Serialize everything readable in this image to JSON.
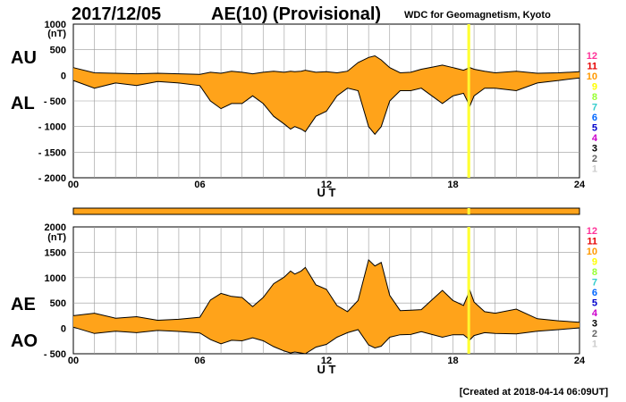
{
  "header": {
    "date": "2017/12/05",
    "title": "AE(10) (Provisional)",
    "source": "WDC for Geomagnetism, Kyoto"
  },
  "footer": {
    "created": "[Created at 2018-04-14 06:09UT]"
  },
  "colors": {
    "fill": "#ffa31a",
    "highlight": "#ffff33",
    "grid": "#9a9a9a",
    "line": "#000000"
  },
  "station_count_scale": [
    {
      "label": "12",
      "color": "#ff3399"
    },
    {
      "label": "11",
      "color": "#e60000"
    },
    {
      "label": "10",
      "color": "#ff9900"
    },
    {
      "label": "9",
      "color": "#ffff00"
    },
    {
      "label": "8",
      "color": "#99ff33"
    },
    {
      "label": "7",
      "color": "#33cccc"
    },
    {
      "label": "6",
      "color": "#0066ff"
    },
    {
      "label": "5",
      "color": "#0000cc"
    },
    {
      "label": "4",
      "color": "#cc00cc"
    },
    {
      "label": "3",
      "color": "#000000"
    },
    {
      "label": "2",
      "color": "#666666"
    },
    {
      "label": "1",
      "color": "#cccccc"
    }
  ],
  "chart_data": [
    {
      "type": "area",
      "name": "AU/AL",
      "series_labels": [
        "AU",
        "AL"
      ],
      "unit": "(nT)",
      "xlabel": "U T",
      "xlim": [
        0,
        24
      ],
      "xticks": [
        "00",
        "06",
        "12",
        "18",
        "24"
      ],
      "ylim": [
        -2000,
        1000
      ],
      "yticks": [
        "1000",
        "500",
        "0",
        "- 500",
        "- 1000",
        "- 1500",
        "- 2000"
      ],
      "grid": true,
      "highlight_x_hours": 18.75,
      "x": [
        0,
        1,
        2,
        3,
        4,
        5,
        6,
        6.5,
        7,
        7.5,
        8,
        8.5,
        9,
        9.5,
        10,
        10.3,
        10.5,
        10.8,
        11,
        11.5,
        12,
        12.5,
        13,
        13.5,
        14,
        14.3,
        14.6,
        15,
        15.5,
        16,
        16.5,
        17,
        17.5,
        18,
        18.5,
        18.8,
        19,
        19.5,
        20,
        21,
        22,
        23,
        24
      ],
      "AU": [
        150,
        50,
        40,
        30,
        40,
        30,
        20,
        60,
        40,
        80,
        60,
        30,
        60,
        80,
        60,
        80,
        70,
        80,
        100,
        60,
        70,
        50,
        80,
        250,
        350,
        380,
        300,
        150,
        50,
        60,
        120,
        160,
        200,
        150,
        100,
        150,
        120,
        80,
        50,
        80,
        40,
        50,
        70
      ],
      "AL": [
        -100,
        -250,
        -150,
        -200,
        -120,
        -150,
        -200,
        -500,
        -650,
        -550,
        -550,
        -400,
        -550,
        -800,
        -950,
        -1050,
        -1000,
        -1050,
        -1100,
        -800,
        -700,
        -400,
        -250,
        -300,
        -1000,
        -1150,
        -1000,
        -500,
        -300,
        -300,
        -250,
        -400,
        -550,
        -400,
        -350,
        -600,
        -400,
        -250,
        -250,
        -300,
        -150,
        -100,
        -50
      ]
    },
    {
      "type": "area",
      "name": "AE/AO",
      "series_labels": [
        "AE",
        "AO"
      ],
      "unit": "(nT)",
      "xlabel": "U T",
      "xlim": [
        0,
        24
      ],
      "xticks": [
        "00",
        "06",
        "12",
        "18",
        "24"
      ],
      "ylim": [
        -500,
        2000
      ],
      "yticks": [
        "2000",
        "1500",
        "1000",
        "500",
        "0",
        "- 500"
      ],
      "grid": true,
      "highlight_x_hours": 18.75,
      "x": [
        0,
        1,
        2,
        3,
        4,
        5,
        6,
        6.5,
        7,
        7.5,
        8,
        8.5,
        9,
        9.5,
        10,
        10.3,
        10.5,
        10.8,
        11,
        11.5,
        12,
        12.5,
        13,
        13.5,
        14,
        14.3,
        14.6,
        15,
        15.5,
        16,
        16.5,
        17,
        17.5,
        18,
        18.5,
        18.8,
        19,
        19.5,
        20,
        21,
        22,
        23,
        24
      ],
      "AE": [
        250,
        300,
        200,
        230,
        160,
        180,
        220,
        560,
        690,
        630,
        610,
        430,
        610,
        880,
        1010,
        1130,
        1070,
        1130,
        1200,
        860,
        770,
        450,
        330,
        550,
        1350,
        1230,
        1300,
        650,
        350,
        360,
        370,
        560,
        750,
        550,
        450,
        750,
        520,
        330,
        300,
        380,
        190,
        150,
        120
      ],
      "AO": [
        25,
        -100,
        -55,
        -85,
        -40,
        -60,
        -90,
        -220,
        -305,
        -235,
        -245,
        -185,
        -245,
        -360,
        -445,
        -485,
        -465,
        -485,
        -500,
        -370,
        -315,
        -175,
        -85,
        -25,
        -325,
        -385,
        -350,
        -175,
        -125,
        -120,
        -65,
        -120,
        -175,
        -125,
        -125,
        -225,
        -140,
        -85,
        -100,
        -110,
        -55,
        -25,
        10
      ]
    }
  ]
}
